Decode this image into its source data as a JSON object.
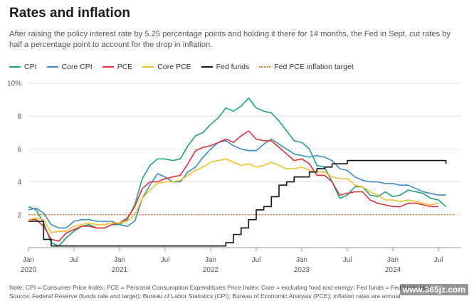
{
  "header": {
    "title": "Rates and inflation",
    "subtitle": "After raising the policy interest rate by 5.25 percentage points and holding it there for 14 months, the Fed in Sept. cut rates by half a percentage point to account for the drop in inflation."
  },
  "footer": {
    "note": "Note: CPI = Consumer Price Index; PCE = Personal Consumption Expenditures Price Index; Core = excluding food and energy; Fed funds = Fed funds rate",
    "source": "Source: Federal Reserve (funds rate and target); Bureau of Labor Statistics (CPI); Bureau of Economic Analysis (PCE); inflation rates are annual",
    "watermark": "www.365jz.com"
  },
  "chart_data": {
    "type": "line",
    "ylim": [
      0,
      10
    ],
    "yticks": [
      2,
      4,
      6,
      8,
      10
    ],
    "ytick_labels": [
      "2",
      "4",
      "6",
      "8",
      "10%"
    ],
    "xlim": [
      2020.0,
      2024.75
    ],
    "xticks": [
      {
        "t": 2020.0,
        "line1": "Jan",
        "line2": "2020"
      },
      {
        "t": 2020.5,
        "line1": "Jul",
        "line2": ""
      },
      {
        "t": 2021.0,
        "line1": "Jan",
        "line2": "2021"
      },
      {
        "t": 2021.5,
        "line1": "Jul",
        "line2": ""
      },
      {
        "t": 2022.0,
        "line1": "Jan",
        "line2": "2022"
      },
      {
        "t": 2022.5,
        "line1": "Jul",
        "line2": ""
      },
      {
        "t": 2023.0,
        "line1": "Jan",
        "line2": "2023"
      },
      {
        "t": 2023.5,
        "line1": "Jul",
        "line2": ""
      },
      {
        "t": 2024.0,
        "line1": "Jan",
        "line2": "2024"
      },
      {
        "t": 2024.5,
        "line1": "Jul",
        "line2": ""
      }
    ],
    "x_start": 2020.0,
    "x_step": 0.08333,
    "target": {
      "name": "Fed PCE inflation target",
      "value": 2,
      "color": "#e8762c"
    },
    "series": [
      {
        "name": "CPI",
        "color": "#1fa37a",
        "step": false,
        "values": [
          2.5,
          2.3,
          1.5,
          0.3,
          0.1,
          0.6,
          1.0,
          1.3,
          1.4,
          1.2,
          1.2,
          1.4,
          1.4,
          1.7,
          2.6,
          4.2,
          5.0,
          5.4,
          5.4,
          5.3,
          5.4,
          6.2,
          6.8,
          7.0,
          7.5,
          7.9,
          8.5,
          8.3,
          8.6,
          9.1,
          8.5,
          8.3,
          8.2,
          7.7,
          7.1,
          6.5,
          6.4,
          6.0,
          5.0,
          4.9,
          4.0,
          3.0,
          3.2,
          3.7,
          3.7,
          3.2,
          3.1,
          3.4,
          3.1,
          3.2,
          3.5,
          3.4,
          3.3,
          3.0,
          2.9,
          2.5
        ]
      },
      {
        "name": "Core CPI",
        "color": "#3b8cc8",
        "step": false,
        "values": [
          2.3,
          2.4,
          2.1,
          1.4,
          1.2,
          1.2,
          1.6,
          1.7,
          1.7,
          1.6,
          1.6,
          1.6,
          1.4,
          1.3,
          1.6,
          3.0,
          3.8,
          4.5,
          4.3,
          4.0,
          4.0,
          4.6,
          4.9,
          5.5,
          6.0,
          6.4,
          6.5,
          6.2,
          6.0,
          5.9,
          5.9,
          6.3,
          6.6,
          6.3,
          6.0,
          5.7,
          5.6,
          5.5,
          5.6,
          5.5,
          5.3,
          4.8,
          4.7,
          4.3,
          4.1,
          4.0,
          4.0,
          3.9,
          3.9,
          3.8,
          3.8,
          3.6,
          3.4,
          3.3,
          3.2,
          3.2
        ]
      },
      {
        "name": "PCE",
        "color": "#e0303a",
        "step": false,
        "values": [
          1.7,
          1.7,
          1.3,
          0.5,
          0.4,
          0.9,
          1.1,
          1.3,
          1.3,
          1.2,
          1.2,
          1.4,
          1.5,
          1.8,
          2.5,
          3.6,
          4.0,
          4.0,
          4.2,
          4.3,
          4.4,
          5.1,
          5.9,
          6.1,
          6.2,
          6.4,
          6.6,
          6.4,
          6.8,
          7.1,
          6.6,
          6.5,
          6.5,
          6.1,
          5.7,
          5.3,
          5.4,
          5.1,
          4.4,
          4.4,
          4.0,
          3.2,
          3.3,
          3.4,
          3.4,
          2.9,
          2.7,
          2.6,
          2.5,
          2.5,
          2.7,
          2.7,
          2.6,
          2.5,
          2.5
        ]
      },
      {
        "name": "Core PCE",
        "color": "#f2c12e",
        "step": false,
        "values": [
          1.7,
          1.8,
          1.7,
          0.9,
          1.0,
          1.0,
          1.3,
          1.4,
          1.5,
          1.4,
          1.4,
          1.5,
          1.5,
          1.6,
          2.0,
          3.0,
          3.5,
          3.9,
          4.0,
          4.0,
          4.1,
          4.4,
          4.7,
          4.9,
          5.2,
          5.3,
          5.4,
          5.2,
          5.0,
          5.1,
          4.9,
          5.0,
          5.2,
          5.0,
          4.8,
          4.8,
          4.9,
          4.7,
          4.6,
          4.6,
          4.3,
          4.2,
          4.2,
          3.8,
          3.7,
          3.4,
          3.2,
          2.9,
          2.9,
          2.8,
          2.9,
          2.8,
          2.7,
          2.6,
          2.7
        ]
      },
      {
        "name": "Fed funds",
        "color": "#111111",
        "step": true,
        "values": [
          1.6,
          1.6,
          0.5,
          0.1,
          0.1,
          0.1,
          0.1,
          0.1,
          0.1,
          0.1,
          0.1,
          0.1,
          0.1,
          0.1,
          0.1,
          0.1,
          0.1,
          0.1,
          0.1,
          0.1,
          0.1,
          0.1,
          0.1,
          0.1,
          0.1,
          0.1,
          0.3,
          0.8,
          1.2,
          1.7,
          2.3,
          2.5,
          3.1,
          3.8,
          4.0,
          4.3,
          4.3,
          4.6,
          4.8,
          4.9,
          5.1,
          5.1,
          5.3,
          5.3,
          5.3,
          5.3,
          5.3,
          5.3,
          5.3,
          5.3,
          5.3,
          5.3,
          5.3,
          5.3,
          5.3,
          5.1
        ]
      }
    ]
  }
}
